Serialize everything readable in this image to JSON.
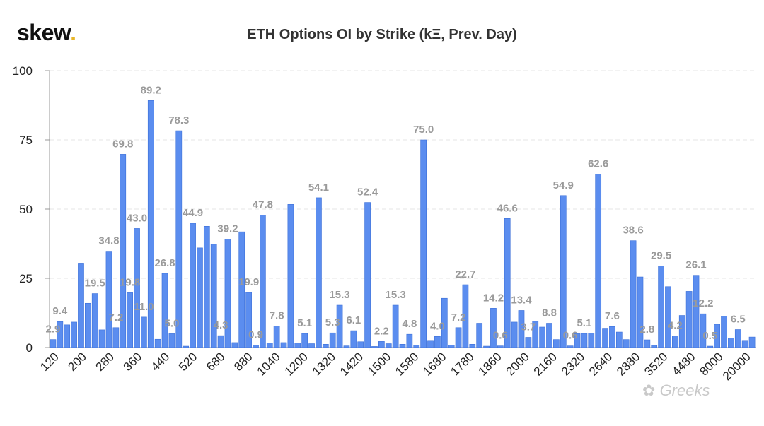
{
  "logo": {
    "text": "skew",
    "dot": "."
  },
  "title": "ETH Options OI by Strike (kΞ, Prev. Day)",
  "watermark": "Greeks",
  "colors": {
    "bar": "#5b8def",
    "bar_stroke": "#3b6fd8",
    "label": "#9a9a9a",
    "grid": "#e6e6e6"
  },
  "chart_data": {
    "type": "bar",
    "title": "ETH Options OI by Strike (kΞ, Prev. Day)",
    "ylim": [
      0,
      100
    ],
    "yticks": [
      0,
      25,
      50,
      75,
      100
    ],
    "grid": "horizontal dashed",
    "x_tick_labels": [
      "120",
      "200",
      "280",
      "360",
      "440",
      "520",
      "680",
      "880",
      "1040",
      "1200",
      "1320",
      "1420",
      "1500",
      "1580",
      "1680",
      "1780",
      "1860",
      "2000",
      "2160",
      "2320",
      "2640",
      "2880",
      "3520",
      "4480",
      "8000",
      "20000"
    ],
    "values": [
      2.9,
      9.4,
      8.2,
      9.2,
      30.5,
      16.0,
      19.5,
      6.4,
      34.8,
      7.2,
      69.8,
      19.8,
      43.0,
      11.0,
      89.2,
      3.0,
      26.8,
      5.0,
      78.3,
      0.5,
      44.9,
      36.0,
      43.8,
      37.3,
      4.3,
      39.2,
      1.8,
      41.8,
      19.9,
      0.9,
      47.8,
      1.6,
      7.8,
      1.8,
      51.7,
      1.6,
      5.1,
      1.4,
      54.1,
      1.2,
      5.3,
      15.3,
      0.6,
      6.1,
      2.1,
      52.4,
      0.4,
      2.2,
      1.4,
      15.3,
      1.2,
      4.8,
      0.9,
      75.0,
      2.6,
      4.0,
      17.8,
      0.9,
      7.2,
      22.7,
      1.2,
      8.8,
      0.5,
      14.2,
      0.6,
      46.6,
      9.2,
      13.4,
      3.7,
      9.5,
      7.4,
      8.8,
      2.9,
      54.9,
      0.6,
      5.0,
      5.1,
      5.2,
      62.6,
      7.0,
      7.6,
      5.6,
      2.9,
      38.6,
      25.5,
      2.8,
      0.8,
      29.5,
      22.0,
      4.2,
      11.6,
      20.3,
      26.1,
      12.2,
      0.5,
      8.4,
      11.4,
      3.4,
      6.5,
      2.6,
      3.8
    ],
    "data_labels": [
      {
        "i": 0,
        "text": "2.9"
      },
      {
        "i": 1,
        "text": "9.4"
      },
      {
        "i": 6,
        "text": "19.5"
      },
      {
        "i": 8,
        "text": "34.8"
      },
      {
        "i": 9,
        "text": "7.2"
      },
      {
        "i": 10,
        "text": "69.8"
      },
      {
        "i": 11,
        "text": "19.8"
      },
      {
        "i": 12,
        "text": "43.0"
      },
      {
        "i": 13,
        "text": "11.0"
      },
      {
        "i": 14,
        "text": "89.2"
      },
      {
        "i": 16,
        "text": "26.8"
      },
      {
        "i": 17,
        "text": "5.0"
      },
      {
        "i": 18,
        "text": "78.3"
      },
      {
        "i": 20,
        "text": "44.9"
      },
      {
        "i": 24,
        "text": "4.3"
      },
      {
        "i": 25,
        "text": "39.2"
      },
      {
        "i": 28,
        "text": "19.9"
      },
      {
        "i": 29,
        "text": "0.9"
      },
      {
        "i": 30,
        "text": "47.8"
      },
      {
        "i": 32,
        "text": "7.8"
      },
      {
        "i": 36,
        "text": "5.1"
      },
      {
        "i": 38,
        "text": "54.1"
      },
      {
        "i": 40,
        "text": "5.3"
      },
      {
        "i": 41,
        "text": "15.3"
      },
      {
        "i": 43,
        "text": "6.1"
      },
      {
        "i": 45,
        "text": "52.4"
      },
      {
        "i": 47,
        "text": "2.2"
      },
      {
        "i": 49,
        "text": "15.3"
      },
      {
        "i": 51,
        "text": "4.8"
      },
      {
        "i": 53,
        "text": "75.0"
      },
      {
        "i": 55,
        "text": "4.0"
      },
      {
        "i": 58,
        "text": "7.2"
      },
      {
        "i": 59,
        "text": "22.7"
      },
      {
        "i": 63,
        "text": "14.2"
      },
      {
        "i": 64,
        "text": "0.6"
      },
      {
        "i": 65,
        "text": "46.6"
      },
      {
        "i": 67,
        "text": "13.4"
      },
      {
        "i": 68,
        "text": "3.7"
      },
      {
        "i": 71,
        "text": "8.8"
      },
      {
        "i": 73,
        "text": "54.9"
      },
      {
        "i": 74,
        "text": "0.6"
      },
      {
        "i": 76,
        "text": "5.1"
      },
      {
        "i": 78,
        "text": "62.6"
      },
      {
        "i": 80,
        "text": "7.6"
      },
      {
        "i": 83,
        "text": "38.6"
      },
      {
        "i": 85,
        "text": "2.8"
      },
      {
        "i": 87,
        "text": "29.5"
      },
      {
        "i": 89,
        "text": "4.2"
      },
      {
        "i": 92,
        "text": "26.1"
      },
      {
        "i": 93,
        "text": "12.2"
      },
      {
        "i": 94,
        "text": "0.5"
      },
      {
        "i": 98,
        "text": "6.5"
      }
    ]
  }
}
